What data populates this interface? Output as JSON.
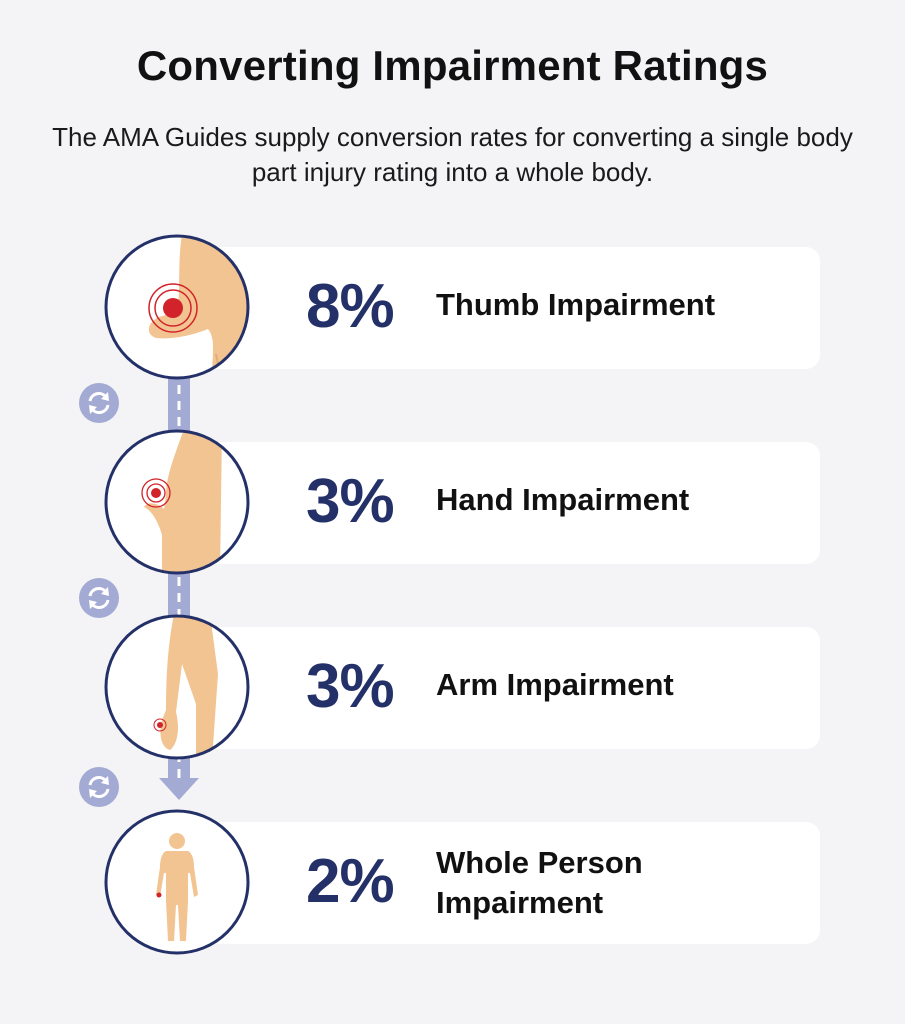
{
  "title": "Converting Impairment Ratings",
  "subtitle": "The AMA Guides supply conversion rates for converting a single body part injury rating into a whole body.",
  "steps": [
    {
      "percent": "8%",
      "label": "Thumb Impairment",
      "icon": "thumb-injury-icon"
    },
    {
      "percent": "3%",
      "label": "Hand Impairment",
      "icon": "hand-injury-icon"
    },
    {
      "percent": "3%",
      "label": "Arm Impairment",
      "icon": "arm-injury-icon"
    },
    {
      "percent": "2%",
      "label": "Whole Person Impairment",
      "icon": "whole-body-icon"
    }
  ],
  "conversion_icon": "conversion-arrows-icon",
  "colors": {
    "background": "#f4f4f6",
    "card": "#ffffff",
    "accent_navy": "#243068",
    "connector": "#a3aad3",
    "skin": "#f2c492",
    "injury_red": "#d2232a"
  }
}
